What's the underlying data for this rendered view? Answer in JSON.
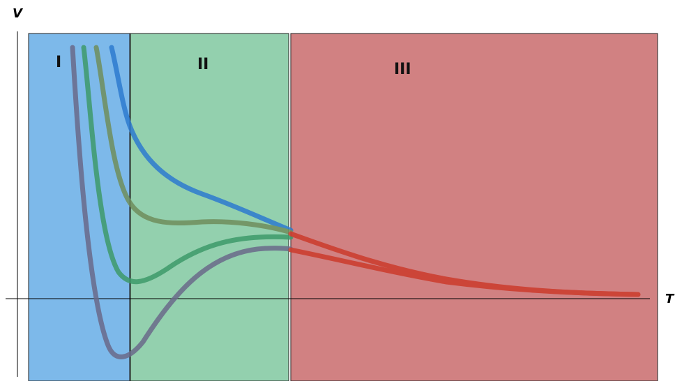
{
  "axes": {
    "x_label": "T",
    "y_label": "V"
  },
  "regions": [
    {
      "label": "I",
      "color": "#7db9ea"
    },
    {
      "label": "II",
      "color": "#93d0ae"
    },
    {
      "label": "III",
      "color": "#d18182"
    }
  ],
  "curves": [
    {
      "stroke": "#2e7bd0"
    },
    {
      "stroke": "#6f8e5c"
    },
    {
      "stroke": "#3e9a6a"
    },
    {
      "stroke": "#6a6a8a"
    }
  ],
  "tail_color": "#cc3b2c"
}
